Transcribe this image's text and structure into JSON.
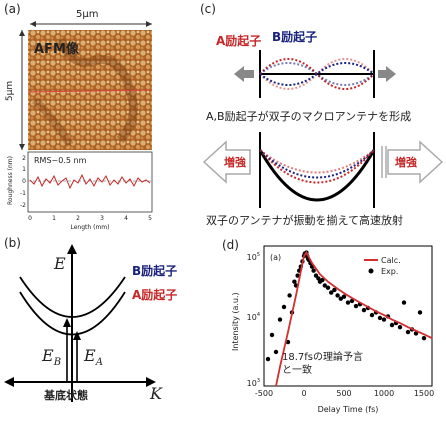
{
  "panel_a": {
    "label": "(a)",
    "scale_top": "5μm",
    "scale_left": "5μm",
    "afm_label": "AFM像",
    "roughness": {
      "rms_text": "RMS~0.5 nm",
      "ylabel": "Roughness (nm)",
      "xlabel": "Length (mm)",
      "yticks": [
        "2",
        "1",
        "0",
        "-1",
        "-2"
      ],
      "xticks": [
        "0",
        "1",
        "2",
        "3",
        "4",
        "5"
      ]
    }
  },
  "panel_b": {
    "label": "(b)",
    "E_axis": "E",
    "K_axis": "K",
    "b_exciton": "B励起子",
    "a_exciton": "A励起子",
    "EB": "E",
    "EB_sub": "B",
    "EA": "E",
    "EA_sub": "A",
    "ground": "基底状態"
  },
  "panel_c": {
    "label": "(c)",
    "a_label": "A励起子",
    "b_label": "B励起子",
    "caption1": "A,B励起子が双子のマクロアンテナを形成",
    "amp_left": "増強",
    "amp_right": "増強",
    "caption2": "双子のアンテナが振動を揃えて高速放射"
  },
  "panel_d": {
    "label": "(d)",
    "inner_label": "(a)",
    "ylabel": "Intensity (a.u.)",
    "xlabel": "Delay Time (fs)",
    "legend_calc": "Calc.",
    "legend_exp": "Exp.",
    "annotation_line1": "18.7fsの理論予言",
    "annotation_line2": "と一致",
    "yticks": [
      "10",
      "10",
      "10"
    ],
    "ytick_exps": [
      "5",
      "4",
      "3"
    ],
    "xticks": [
      "-500",
      "0",
      "500",
      "1000",
      "1500"
    ]
  },
  "chart_data": {
    "type": "scatter",
    "xlabel": "Delay Time (fs)",
    "ylabel": "Intensity (a.u.)",
    "xlim": [
      -500,
      1600
    ],
    "ylim": [
      1000,
      300000
    ],
    "yscale": "log",
    "series": [
      {
        "name": "Exp.",
        "x": [
          -450,
          -400,
          -350,
          -300,
          -250,
          -200,
          -180,
          -150,
          -120,
          -100,
          -80,
          -60,
          -40,
          -20,
          0,
          10,
          20,
          30,
          40,
          50,
          60,
          80,
          100,
          120,
          150,
          180,
          200,
          230,
          260,
          300,
          340,
          380,
          420,
          460,
          500,
          550,
          600,
          650,
          700,
          750,
          800,
          850,
          900,
          950,
          1000,
          1050,
          1100,
          1150,
          1200,
          1250,
          1300,
          1350,
          1400,
          1450,
          1500
        ],
        "y": [
          3000,
          8000,
          4000,
          15000,
          25000,
          6000,
          40000,
          20000,
          70000,
          60000,
          90000,
          110000,
          130000,
          160000,
          200000,
          220000,
          210000,
          230000,
          200000,
          180000,
          170000,
          150000,
          130000,
          110000,
          90000,
          80000,
          70000,
          75000,
          60000,
          55000,
          45000,
          50000,
          40000,
          35000,
          38000,
          30000,
          32000,
          26000,
          28000,
          22000,
          24000,
          18000,
          20000,
          16000,
          15000,
          17000,
          12000,
          13000,
          11000,
          30000,
          9000,
          10000,
          8500,
          20000,
          7000
        ]
      },
      {
        "name": "Calc.",
        "x": [
          -350,
          -300,
          -200,
          -100,
          -50,
          0,
          30,
          100,
          200,
          300,
          400,
          500,
          600,
          700,
          800,
          900,
          1000,
          1100,
          1200,
          1300,
          1400,
          1500,
          1600
        ],
        "y": [
          1000,
          2200,
          9000,
          40000,
          90000,
          200000,
          230000,
          150000,
          95000,
          70000,
          55000,
          44000,
          36000,
          30000,
          25000,
          21000,
          18000,
          15000,
          13000,
          11000,
          9500,
          8200,
          7000
        ]
      }
    ]
  }
}
